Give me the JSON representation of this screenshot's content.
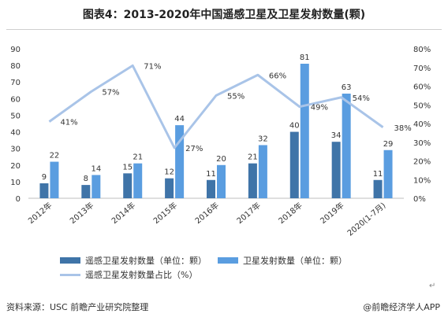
{
  "page": {
    "title": "图表4：2013-2020年中国遥感卫星及卫星发射数量(颗)",
    "source": "资料来源：USC 前瞻产业研究院整理",
    "credit": "@前瞻经济学人APP",
    "return_mark": "↵"
  },
  "colors": {
    "remote_bar": "#3f74a8",
    "satellite_bar": "#5a9de0",
    "share_line": "#a9c4e8",
    "text": "#333333"
  },
  "chart_data": {
    "type": "bar",
    "categories": [
      "2012年",
      "2013年",
      "2014年",
      "2015年",
      "2016年",
      "2017年",
      "2018年",
      "2019年",
      "2020(1-7月)"
    ],
    "series": [
      {
        "name": "遥感卫星发射数量（单位：颗）",
        "type": "bar",
        "axis": "left",
        "values": [
          9,
          8,
          15,
          12,
          11,
          21,
          40,
          34,
          11
        ]
      },
      {
        "name": "卫星发射数量（单位：颗）",
        "type": "bar",
        "axis": "left",
        "values": [
          22,
          14,
          21,
          44,
          20,
          32,
          81,
          63,
          29
        ]
      },
      {
        "name": "遥感卫星发射数量占比（%）",
        "type": "line",
        "axis": "right",
        "values": [
          41,
          57,
          71,
          27,
          55,
          66,
          49,
          54,
          38
        ],
        "labels": [
          "41%",
          "57%",
          "71%",
          "27%",
          "55%",
          "66%",
          "49%",
          "54%",
          "38%"
        ]
      }
    ],
    "y_left": {
      "ylim": [
        0,
        90
      ],
      "ticks": [
        "0",
        "10",
        "20",
        "30",
        "40",
        "50",
        "60",
        "70",
        "80",
        "90"
      ]
    },
    "y_right": {
      "ylim": [
        0,
        80
      ],
      "ticks": [
        "0%",
        "10%",
        "20%",
        "30%",
        "40%",
        "50%",
        "60%",
        "70%",
        "80%"
      ]
    },
    "grid": false,
    "legend_position": "bottom"
  }
}
